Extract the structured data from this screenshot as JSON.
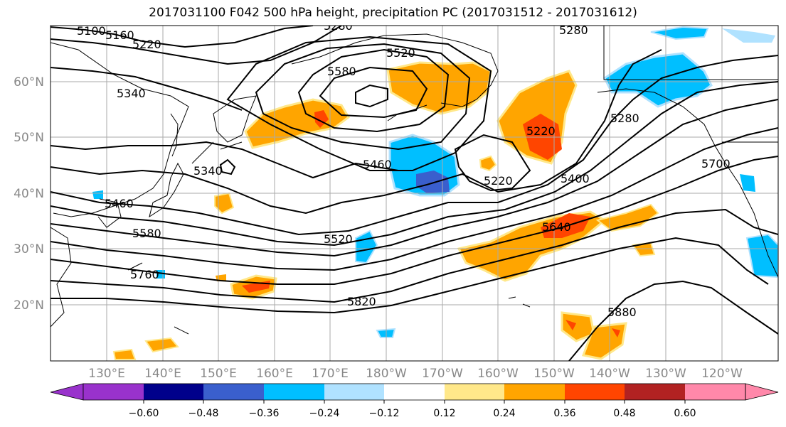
{
  "title": "2017031100 F042 500 hPa height, precipitation PC (2017031512 - 2017031612)",
  "map": {
    "lat_labels": [
      "20°N",
      "30°N",
      "40°N",
      "50°N",
      "60°N"
    ],
    "lon_labels": [
      "130°E",
      "140°E",
      "150°E",
      "160°E",
      "170°E",
      "180°W",
      "170°W",
      "160°W",
      "150°W",
      "140°W",
      "130°W",
      "120°W"
    ],
    "contour_labels": [
      "5100",
      "5160",
      "5220",
      "5340",
      "5520",
      "5580",
      "5280",
      "5280",
      "5220",
      "5340",
      "5460",
      "5460",
      "5580",
      "5760",
      "5520",
      "5220",
      "5400",
      "5700",
      "5640",
      "5820",
      "5880"
    ],
    "colors": {
      "land_outline": "#000000",
      "grid": "#aaaaaa",
      "contour": "#000000"
    }
  },
  "colorbar": {
    "ticks": [
      "−0.60",
      "−0.48",
      "−0.36",
      "−0.24",
      "−0.12",
      "0.12",
      "0.24",
      "0.36",
      "0.48",
      "0.60"
    ],
    "colors": [
      "#9932cc",
      "#00008b",
      "#3a5fcd",
      "#00bfff",
      "#b0e2ff",
      "#ffffff",
      "#ffffff",
      "#ffe88a",
      "#ffa500",
      "#ff4500",
      "#b22222",
      "#ff88aa"
    ]
  }
}
